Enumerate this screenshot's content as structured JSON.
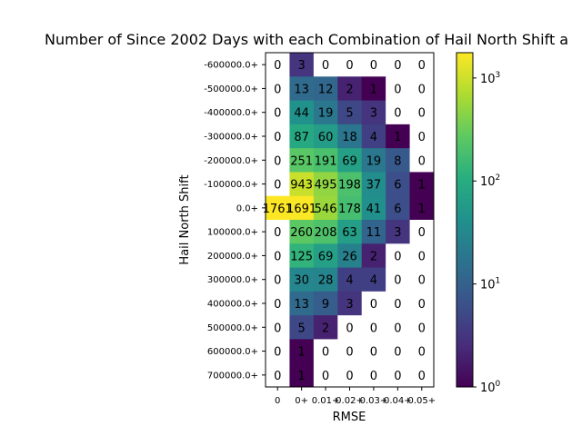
{
  "chart_data": {
    "type": "heatmap",
    "title": "Number of Since 2002 Days with each Combination of Hail North Shift a",
    "xlabel": "RMSE",
    "ylabel": "Hail North Shift",
    "x_categories": [
      "0",
      "0+",
      "0.01+",
      "0.02+",
      "0.03+",
      "0.04+",
      "0.05+"
    ],
    "y_categories": [
      "-600000.0+",
      "-500000.0+",
      "-400000.0+",
      "-300000.0+",
      "-200000.0+",
      "-100000.0+",
      "0.0+",
      "100000.0+",
      "200000.0+",
      "300000.0+",
      "400000.0+",
      "500000.0+",
      "600000.0+",
      "700000.0+"
    ],
    "values": [
      [
        0,
        3,
        0,
        0,
        0,
        0,
        0
      ],
      [
        0,
        13,
        12,
        2,
        1,
        0,
        0
      ],
      [
        0,
        44,
        19,
        5,
        3,
        0,
        0
      ],
      [
        0,
        87,
        60,
        18,
        4,
        1,
        0
      ],
      [
        0,
        251,
        191,
        69,
        19,
        8,
        0
      ],
      [
        0,
        943,
        495,
        198,
        37,
        6,
        1
      ],
      [
        1761,
        1691,
        546,
        178,
        41,
        6,
        1
      ],
      [
        0,
        260,
        208,
        63,
        11,
        3,
        0
      ],
      [
        0,
        125,
        69,
        26,
        2,
        0,
        0
      ],
      [
        0,
        30,
        28,
        4,
        4,
        0,
        0
      ],
      [
        0,
        13,
        9,
        3,
        0,
        0,
        0
      ],
      [
        0,
        5,
        2,
        0,
        0,
        0,
        0
      ],
      [
        0,
        1,
        0,
        0,
        0,
        0,
        0
      ],
      [
        0,
        1,
        0,
        0,
        0,
        0,
        0
      ]
    ],
    "colorbar": {
      "scale": "log",
      "range": [
        1,
        1761
      ],
      "colormap": "viridis",
      "tick_labels": [
        {
          "base": "10",
          "exp": "0",
          "value": 1
        },
        {
          "base": "10",
          "exp": "1",
          "value": 10
        },
        {
          "base": "10",
          "exp": "2",
          "value": 100
        },
        {
          "base": "10",
          "exp": "3",
          "value": 1000
        }
      ]
    },
    "zero_color": "#ffffff"
  }
}
